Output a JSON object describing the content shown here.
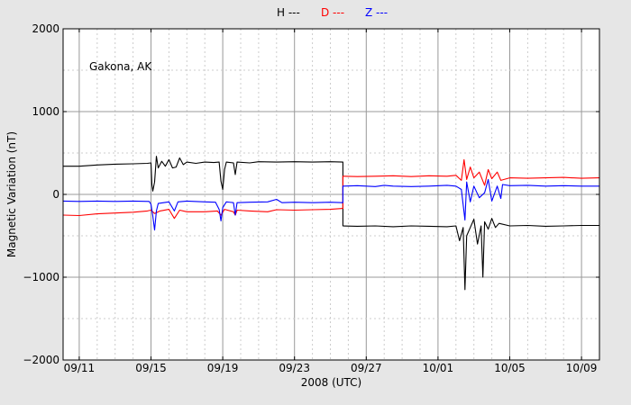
{
  "chart_data": {
    "type": "line",
    "annotation": "Gakona, AK",
    "xlabel": "2008 (UTC)",
    "ylabel": "Magnetic Variation (nT)",
    "ylim": [
      -2000,
      2000
    ],
    "yticks": [
      -2000,
      -1000,
      0,
      1000,
      2000
    ],
    "ytick_labels": [
      "−2000",
      "−1000",
      "0",
      "1000",
      "2000"
    ],
    "xlim_days": [
      -0.9,
      29.0
    ],
    "xticks": [
      {
        "day": 0,
        "label": "09/11"
      },
      {
        "day": 4,
        "label": "09/15"
      },
      {
        "day": 8,
        "label": "09/19"
      },
      {
        "day": 12,
        "label": "09/23"
      },
      {
        "day": 16,
        "label": "09/27"
      },
      {
        "day": 20,
        "label": "10/01"
      },
      {
        "day": 24,
        "label": "10/05"
      },
      {
        "day": 28,
        "label": "10/09"
      }
    ],
    "grid": true,
    "legend_position": "top-center",
    "series": [
      {
        "name": "H ---",
        "color": "#000000",
        "points": [
          [
            -0.9,
            340
          ],
          [
            0.0,
            340
          ],
          [
            1.0,
            355
          ],
          [
            2.0,
            365
          ],
          [
            3.0,
            370
          ],
          [
            3.8,
            375
          ],
          [
            4.0,
            380
          ],
          [
            4.05,
            120
          ],
          [
            4.1,
            40
          ],
          [
            4.2,
            150
          ],
          [
            4.3,
            460
          ],
          [
            4.4,
            320
          ],
          [
            4.6,
            400
          ],
          [
            4.8,
            340
          ],
          [
            5.0,
            420
          ],
          [
            5.2,
            320
          ],
          [
            5.4,
            330
          ],
          [
            5.6,
            440
          ],
          [
            5.8,
            360
          ],
          [
            6.0,
            390
          ],
          [
            6.5,
            375
          ],
          [
            7.0,
            390
          ],
          [
            7.5,
            385
          ],
          [
            7.8,
            390
          ],
          [
            7.9,
            160
          ],
          [
            8.0,
            60
          ],
          [
            8.1,
            300
          ],
          [
            8.2,
            390
          ],
          [
            8.6,
            380
          ],
          [
            8.7,
            240
          ],
          [
            8.8,
            390
          ],
          [
            9.5,
            380
          ],
          [
            10.0,
            395
          ],
          [
            11.0,
            390
          ],
          [
            12.0,
            395
          ],
          [
            13.0,
            390
          ],
          [
            14.0,
            395
          ],
          [
            14.7,
            390
          ],
          [
            14.7,
            -380
          ],
          [
            15.5,
            -385
          ],
          [
            16.5,
            -380
          ],
          [
            17.5,
            -390
          ],
          [
            18.5,
            -380
          ],
          [
            19.5,
            -385
          ],
          [
            20.5,
            -390
          ],
          [
            21.0,
            -380
          ],
          [
            21.2,
            -560
          ],
          [
            21.4,
            -400
          ],
          [
            21.5,
            -1150
          ],
          [
            21.6,
            -500
          ],
          [
            21.8,
            -400
          ],
          [
            22.0,
            -300
          ],
          [
            22.2,
            -600
          ],
          [
            22.4,
            -380
          ],
          [
            22.5,
            -1000
          ],
          [
            22.6,
            -330
          ],
          [
            22.8,
            -420
          ],
          [
            23.0,
            -290
          ],
          [
            23.2,
            -400
          ],
          [
            23.4,
            -350
          ],
          [
            24.0,
            -380
          ],
          [
            25.0,
            -375
          ],
          [
            26.0,
            -385
          ],
          [
            27.0,
            -380
          ],
          [
            28.0,
            -375
          ],
          [
            29.0,
            -375
          ]
        ]
      },
      {
        "name": "D ---",
        "color": "#ff0000",
        "points": [
          [
            -0.9,
            -250
          ],
          [
            0.0,
            -255
          ],
          [
            1.0,
            -235
          ],
          [
            2.0,
            -225
          ],
          [
            3.0,
            -215
          ],
          [
            3.8,
            -200
          ],
          [
            4.0,
            -190
          ],
          [
            4.2,
            -230
          ],
          [
            4.5,
            -200
          ],
          [
            5.0,
            -180
          ],
          [
            5.3,
            -290
          ],
          [
            5.6,
            -190
          ],
          [
            6.0,
            -210
          ],
          [
            7.0,
            -210
          ],
          [
            7.7,
            -200
          ],
          [
            7.9,
            -250
          ],
          [
            8.1,
            -180
          ],
          [
            8.6,
            -210
          ],
          [
            8.7,
            -250
          ],
          [
            8.8,
            -190
          ],
          [
            9.5,
            -200
          ],
          [
            10.5,
            -210
          ],
          [
            11.0,
            -185
          ],
          [
            12.0,
            -190
          ],
          [
            13.0,
            -185
          ],
          [
            14.0,
            -180
          ],
          [
            14.7,
            -170
          ],
          [
            14.7,
            220
          ],
          [
            15.5,
            215
          ],
          [
            16.5,
            220
          ],
          [
            17.5,
            225
          ],
          [
            18.5,
            215
          ],
          [
            19.5,
            225
          ],
          [
            20.5,
            220
          ],
          [
            21.0,
            230
          ],
          [
            21.3,
            170
          ],
          [
            21.45,
            420
          ],
          [
            21.6,
            180
          ],
          [
            21.8,
            330
          ],
          [
            22.0,
            200
          ],
          [
            22.3,
            270
          ],
          [
            22.6,
            110
          ],
          [
            22.8,
            300
          ],
          [
            23.0,
            190
          ],
          [
            23.3,
            270
          ],
          [
            23.5,
            170
          ],
          [
            24.0,
            200
          ],
          [
            25.0,
            195
          ],
          [
            26.0,
            200
          ],
          [
            27.0,
            205
          ],
          [
            28.0,
            195
          ],
          [
            29.0,
            200
          ]
        ]
      },
      {
        "name": "Z ---",
        "color": "#0000ff",
        "points": [
          [
            -0.9,
            -80
          ],
          [
            0.0,
            -85
          ],
          [
            1.0,
            -80
          ],
          [
            2.0,
            -85
          ],
          [
            3.0,
            -80
          ],
          [
            3.9,
            -85
          ],
          [
            4.0,
            -120
          ],
          [
            4.1,
            -260
          ],
          [
            4.2,
            -430
          ],
          [
            4.3,
            -200
          ],
          [
            4.4,
            -110
          ],
          [
            5.0,
            -90
          ],
          [
            5.3,
            -200
          ],
          [
            5.5,
            -90
          ],
          [
            6.0,
            -80
          ],
          [
            7.0,
            -90
          ],
          [
            7.6,
            -95
          ],
          [
            7.8,
            -180
          ],
          [
            7.9,
            -320
          ],
          [
            8.0,
            -160
          ],
          [
            8.2,
            -90
          ],
          [
            8.6,
            -100
          ],
          [
            8.7,
            -250
          ],
          [
            8.8,
            -100
          ],
          [
            9.5,
            -95
          ],
          [
            10.5,
            -90
          ],
          [
            11.0,
            -60
          ],
          [
            11.3,
            -100
          ],
          [
            12.0,
            -95
          ],
          [
            13.0,
            -100
          ],
          [
            14.0,
            -95
          ],
          [
            14.7,
            -100
          ],
          [
            14.7,
            100
          ],
          [
            15.5,
            105
          ],
          [
            16.5,
            95
          ],
          [
            17.0,
            110
          ],
          [
            17.5,
            100
          ],
          [
            18.5,
            95
          ],
          [
            19.5,
            100
          ],
          [
            20.5,
            110
          ],
          [
            21.0,
            100
          ],
          [
            21.3,
            60
          ],
          [
            21.5,
            -310
          ],
          [
            21.6,
            150
          ],
          [
            21.8,
            -90
          ],
          [
            22.0,
            100
          ],
          [
            22.3,
            -40
          ],
          [
            22.6,
            20
          ],
          [
            22.8,
            180
          ],
          [
            23.0,
            -80
          ],
          [
            23.3,
            100
          ],
          [
            23.5,
            -50
          ],
          [
            23.6,
            120
          ],
          [
            24.0,
            105
          ],
          [
            25.0,
            110
          ],
          [
            26.0,
            100
          ],
          [
            27.0,
            105
          ],
          [
            28.0,
            100
          ],
          [
            29.0,
            100
          ]
        ]
      }
    ]
  }
}
